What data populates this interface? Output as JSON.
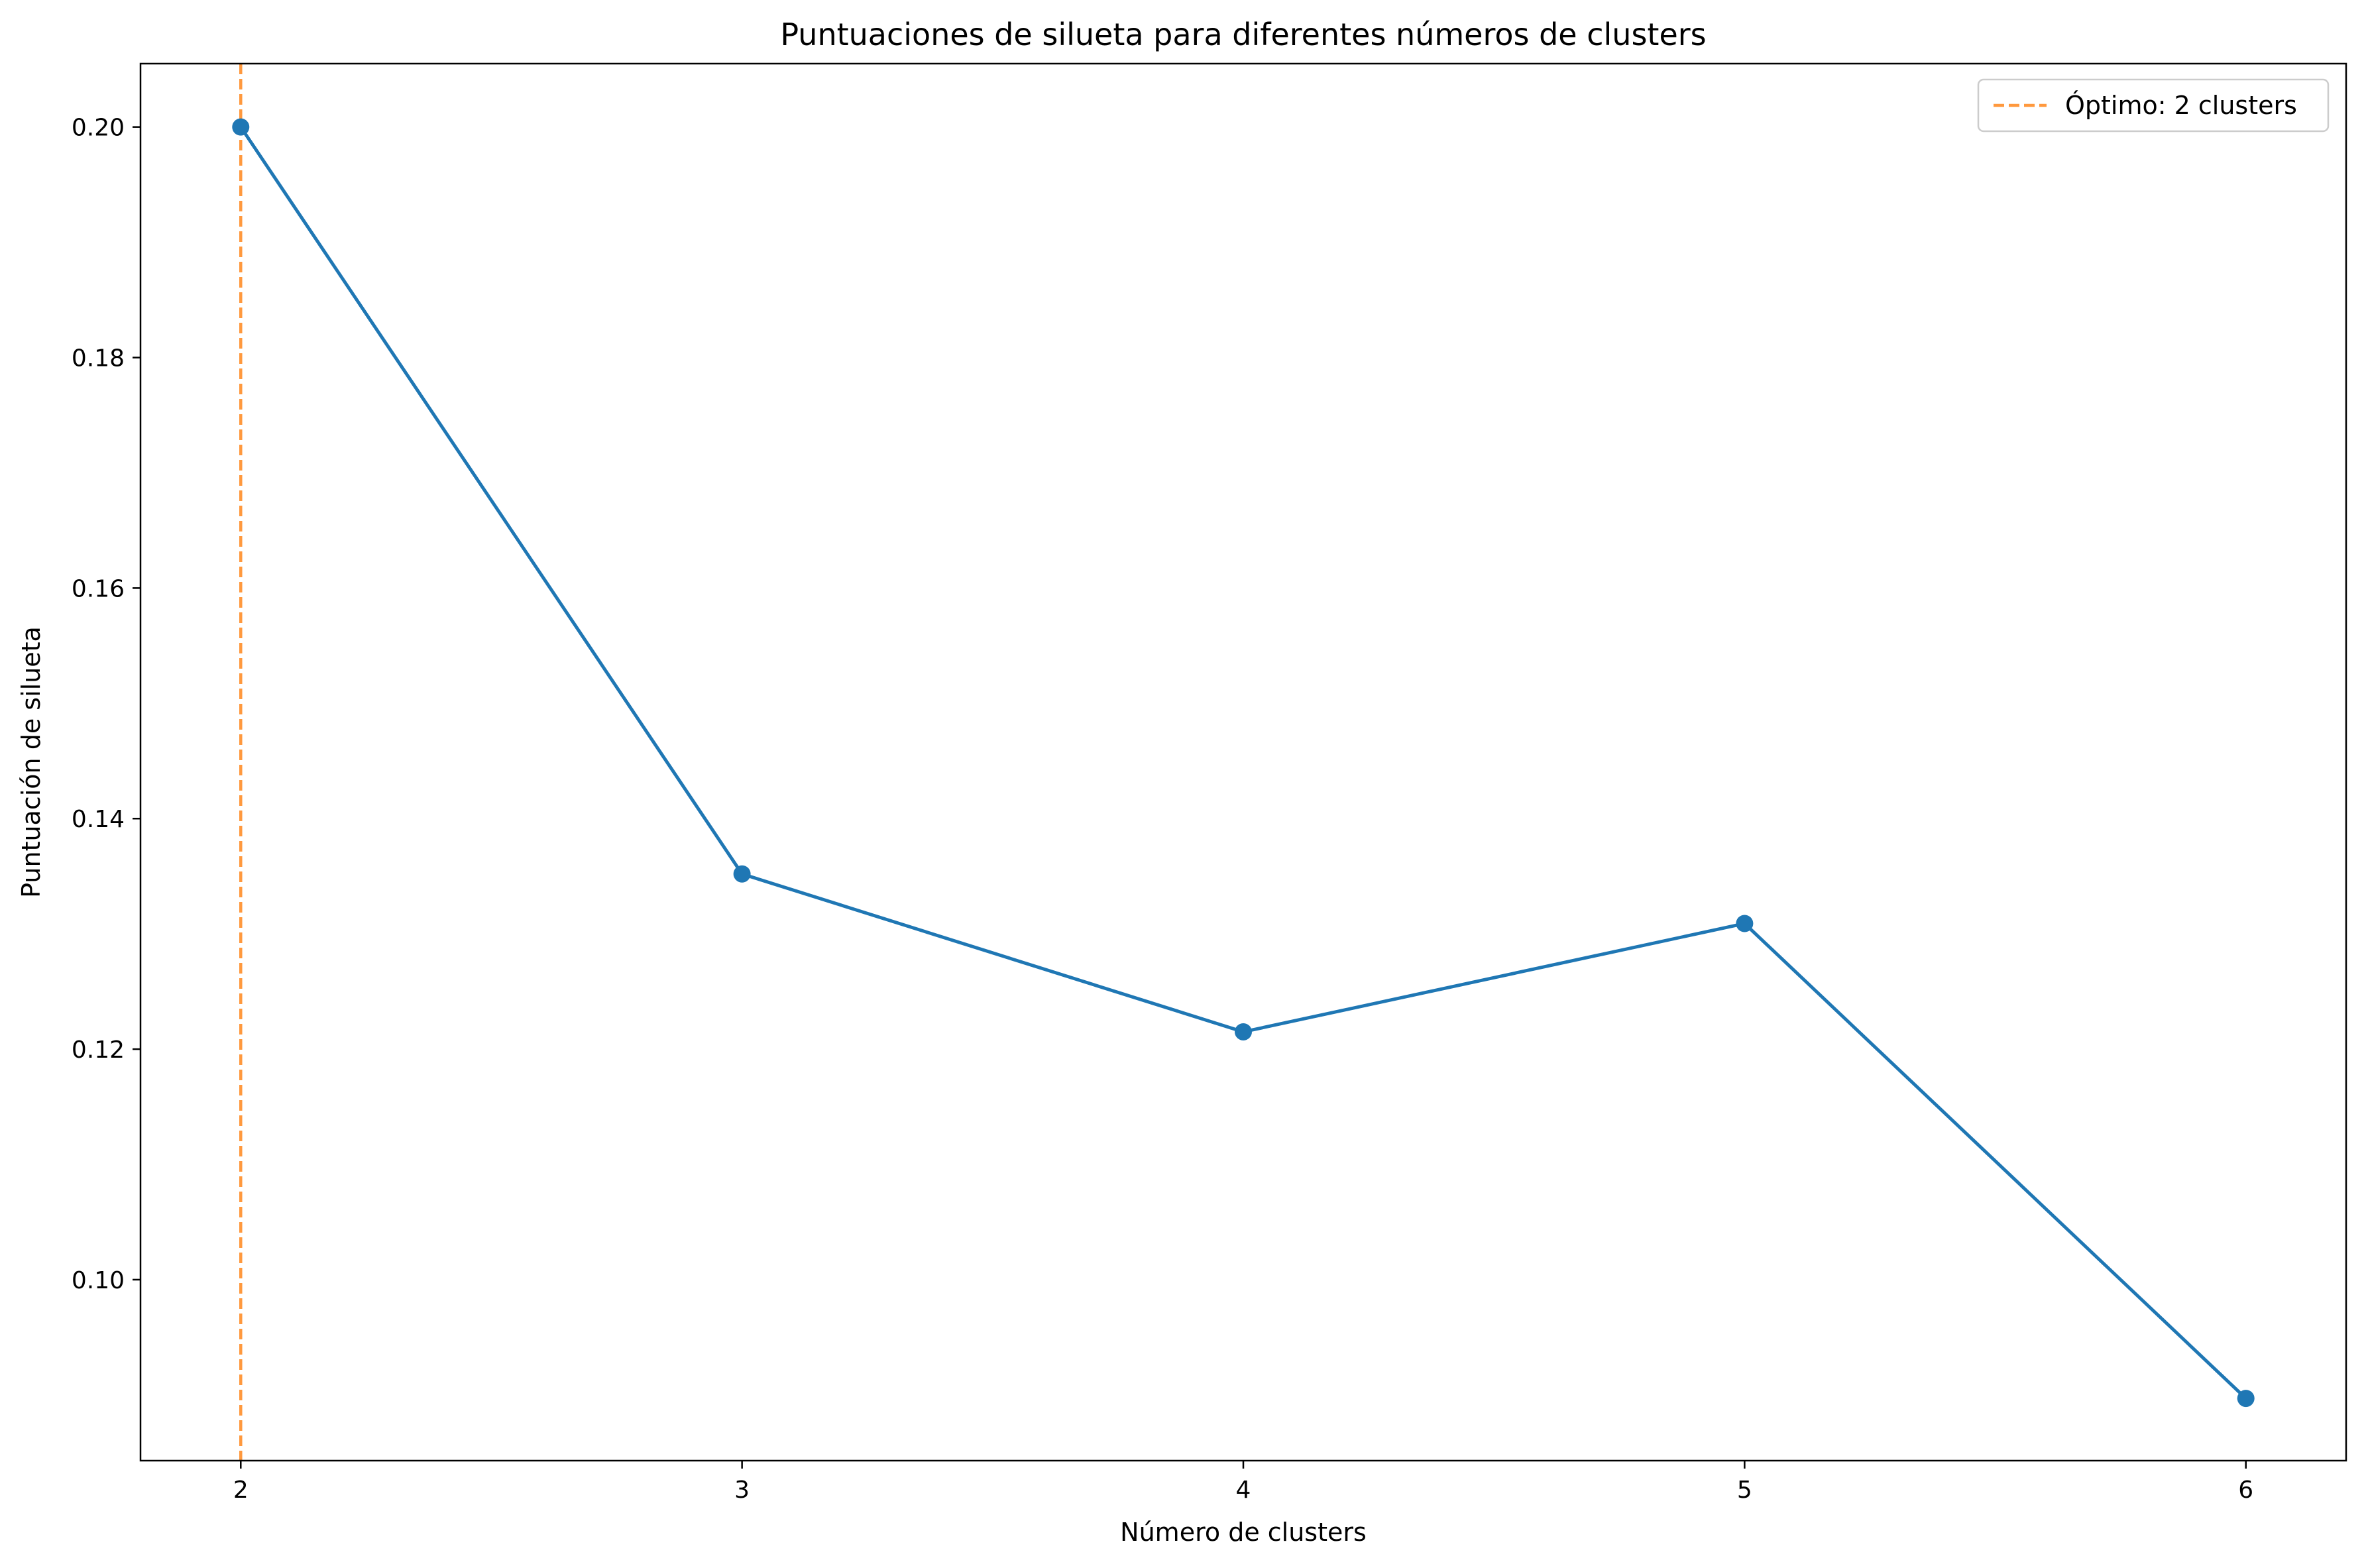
{
  "chart_data": {
    "type": "line",
    "title": "Puntuaciones de silueta para diferentes números de clusters",
    "xlabel": "Número de clusters",
    "ylabel": "Puntuación de silueta",
    "x": [
      2,
      3,
      4,
      5,
      6
    ],
    "xticks": [
      "2",
      "3",
      "4",
      "5",
      "6"
    ],
    "yticks": [
      "0.10",
      "0.12",
      "0.14",
      "0.16",
      "0.18",
      "0.20"
    ],
    "ytick_values": [
      0.1,
      0.12,
      0.14,
      0.16,
      0.18,
      0.2
    ],
    "xlim": [
      1.8,
      6.2
    ],
    "ylim": [
      0.0843,
      0.2055
    ],
    "grid": false,
    "series": [
      {
        "values": [
          0.2,
          0.1352,
          0.1215,
          0.1309,
          0.0897
        ],
        "color": "#1f77b4",
        "marker": "circle"
      }
    ],
    "reference_lines": [
      {
        "orientation": "vertical",
        "x": 2,
        "label": "Óptimo: 2 clusters",
        "color": "#ff7f0e",
        "style": "dashed"
      }
    ],
    "legend": {
      "placement": "top-right",
      "entries": [
        "Óptimo: 2 clusters"
      ]
    }
  }
}
